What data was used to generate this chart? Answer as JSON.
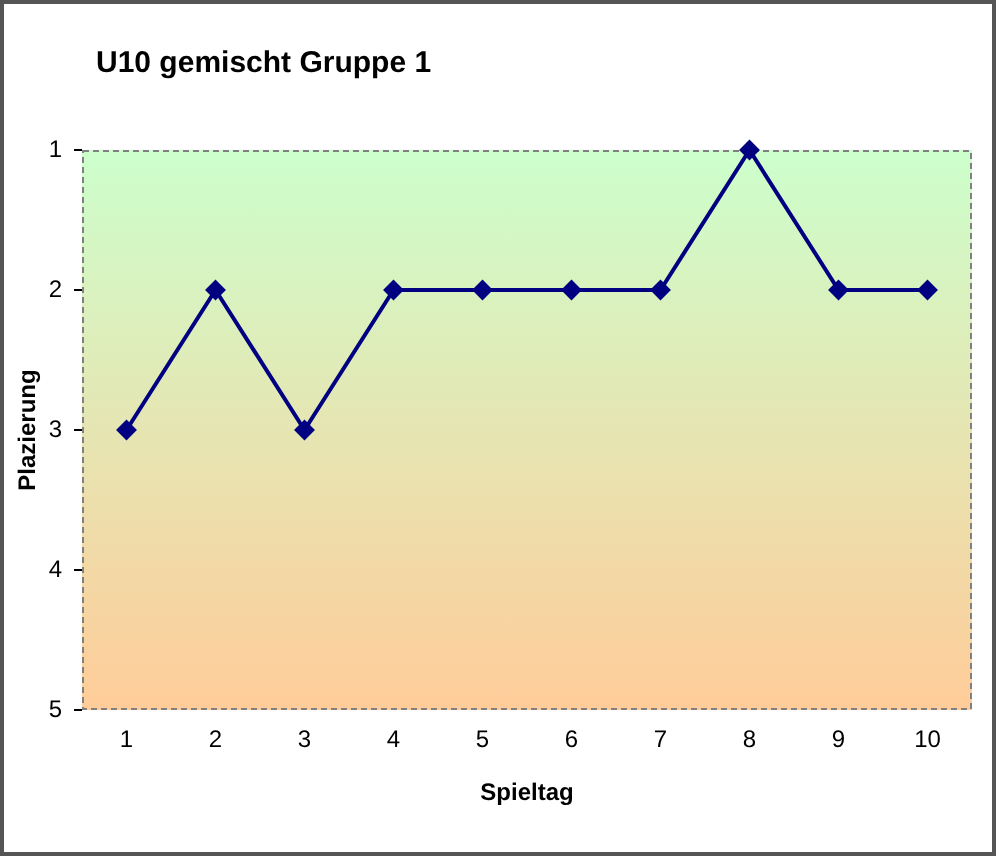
{
  "chart_data": {
    "type": "line",
    "title": "U10 gemischt Gruppe 1",
    "xlabel": "Spieltag",
    "ylabel": "Plazierung",
    "categories": [
      "1",
      "2",
      "3",
      "4",
      "5",
      "6",
      "7",
      "8",
      "9",
      "10"
    ],
    "series": [
      {
        "color": "#000080",
        "values": [
          3,
          2,
          3,
          2,
          2,
          2,
          2,
          1,
          2,
          2
        ]
      }
    ],
    "ylim": [
      5,
      1
    ],
    "yticks": [
      1,
      2,
      3,
      4,
      5
    ],
    "grid": false,
    "legend": false,
    "marker": "diamond",
    "line_style": "solid"
  }
}
